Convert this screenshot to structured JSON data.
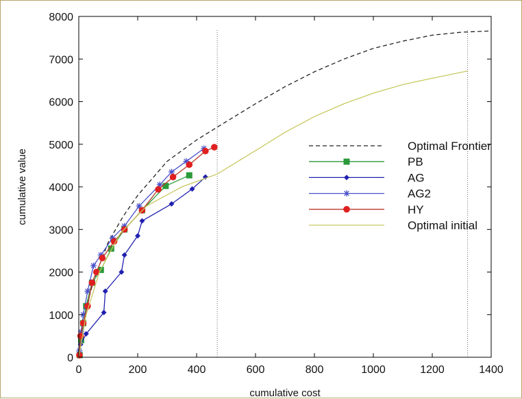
{
  "chart_data": {
    "type": "line",
    "title": "",
    "xlabel": "cumulative cost",
    "ylabel": "cumulative value",
    "xlim": [
      0,
      1400
    ],
    "ylim": [
      0,
      8000
    ],
    "xticks": [
      0,
      200,
      400,
      600,
      800,
      1000,
      1200,
      1400
    ],
    "yticks": [
      0,
      1000,
      2000,
      3000,
      4000,
      5000,
      6000,
      7000,
      8000
    ],
    "legend_position": "right",
    "vlines": [
      {
        "x": 470,
        "style": "dotted",
        "color": "#666666"
      },
      {
        "x": 1320,
        "style": "dotted",
        "color": "#666666"
      }
    ],
    "series": [
      {
        "name": "Optimal Frontier",
        "color": "#222222",
        "dash": "6,4",
        "marker": "none",
        "points": [
          [
            0,
            0
          ],
          [
            20,
            1000
          ],
          [
            50,
            1800
          ],
          [
            100,
            2700
          ],
          [
            150,
            3300
          ],
          [
            200,
            3800
          ],
          [
            300,
            4600
          ],
          [
            400,
            5100
          ],
          [
            470,
            5400
          ],
          [
            600,
            5950
          ],
          [
            700,
            6350
          ],
          [
            800,
            6700
          ],
          [
            900,
            7000
          ],
          [
            1000,
            7250
          ],
          [
            1100,
            7420
          ],
          [
            1200,
            7560
          ],
          [
            1300,
            7630
          ],
          [
            1400,
            7660
          ]
        ]
      },
      {
        "name": "PB",
        "color": "#2a9a3a",
        "dash": "",
        "marker": "square",
        "points": [
          [
            3,
            50
          ],
          [
            8,
            400
          ],
          [
            15,
            800
          ],
          [
            25,
            1200
          ],
          [
            45,
            1750
          ],
          [
            75,
            2050
          ],
          [
            110,
            2550
          ],
          [
            155,
            3000
          ],
          [
            215,
            3450
          ],
          [
            295,
            4020
          ],
          [
            375,
            4270
          ]
        ]
      },
      {
        "name": "AG",
        "color": "#2020b0",
        "dash": "",
        "marker": "diamond",
        "points": [
          [
            2,
            100
          ],
          [
            6,
            300
          ],
          [
            25,
            550
          ],
          [
            85,
            1050
          ],
          [
            90,
            1550
          ],
          [
            145,
            2000
          ],
          [
            155,
            2400
          ],
          [
            200,
            2850
          ],
          [
            215,
            3200
          ],
          [
            315,
            3600
          ],
          [
            385,
            3950
          ],
          [
            430,
            4230
          ]
        ]
      },
      {
        "name": "AG2",
        "color": "#4a50c8",
        "dash": "",
        "marker": "star",
        "points": [
          [
            2,
            150
          ],
          [
            8,
            600
          ],
          [
            15,
            1000
          ],
          [
            30,
            1550
          ],
          [
            50,
            2150
          ],
          [
            75,
            2400
          ],
          [
            115,
            2800
          ],
          [
            155,
            3080
          ],
          [
            205,
            3550
          ],
          [
            275,
            4050
          ],
          [
            315,
            4350
          ],
          [
            365,
            4600
          ],
          [
            425,
            4900
          ]
        ]
      },
      {
        "name": "HY",
        "color": "#b83a2a",
        "dash": "",
        "marker": "circle",
        "points": [
          [
            2,
            50
          ],
          [
            6,
            500
          ],
          [
            15,
            800
          ],
          [
            30,
            1200
          ],
          [
            45,
            1750
          ],
          [
            60,
            2000
          ],
          [
            80,
            2330
          ],
          [
            120,
            2720
          ],
          [
            155,
            3000
          ],
          [
            215,
            3450
          ],
          [
            270,
            3940
          ],
          [
            320,
            4230
          ],
          [
            375,
            4520
          ],
          [
            430,
            4840
          ],
          [
            460,
            4930
          ]
        ]
      },
      {
        "name": "Optimal initial",
        "color": "#c8c860",
        "dash": "",
        "marker": "none",
        "points": [
          [
            0,
            0
          ],
          [
            25,
            1000
          ],
          [
            70,
            2000
          ],
          [
            140,
            2900
          ],
          [
            230,
            3550
          ],
          [
            350,
            4000
          ],
          [
            470,
            4300
          ],
          [
            600,
            4850
          ],
          [
            700,
            5280
          ],
          [
            800,
            5650
          ],
          [
            900,
            5950
          ],
          [
            1000,
            6200
          ],
          [
            1100,
            6400
          ],
          [
            1200,
            6550
          ],
          [
            1320,
            6720
          ]
        ]
      }
    ]
  }
}
